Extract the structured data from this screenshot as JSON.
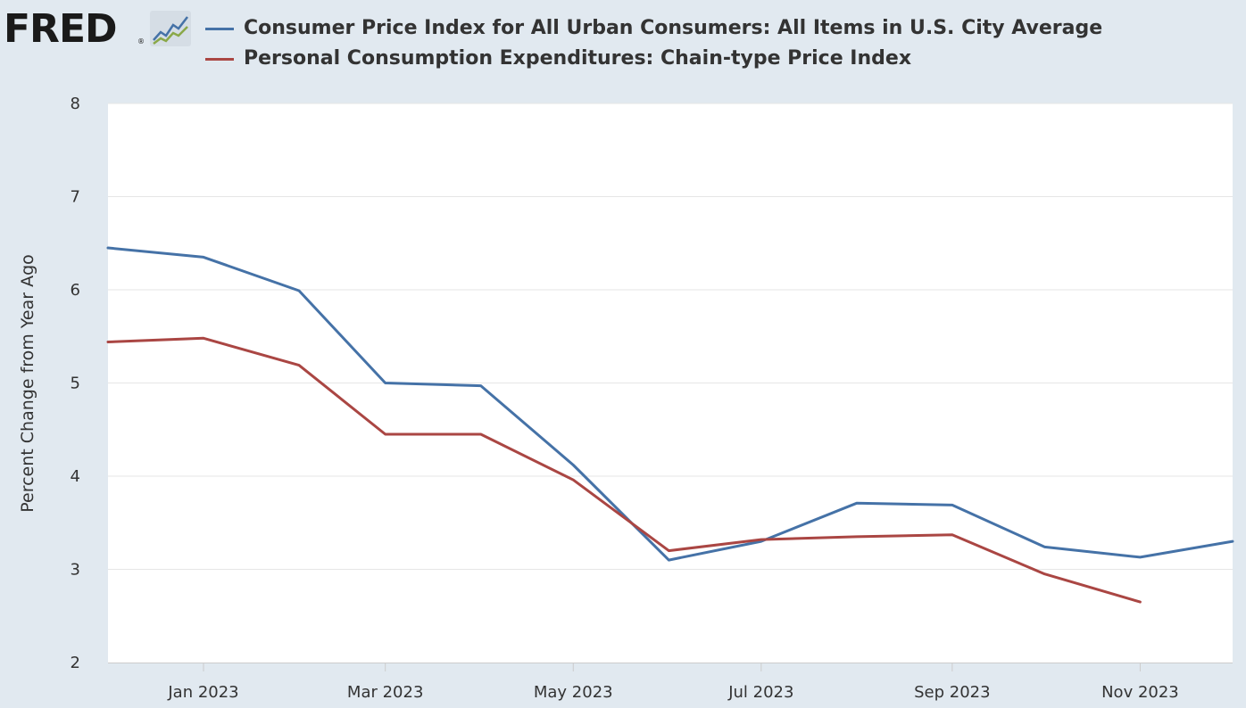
{
  "header": {
    "logo_text": "FRED",
    "logo_reg": "®",
    "logo_icon": "line-chart-icon"
  },
  "colors": {
    "background": "#e1e9f0",
    "plot_area": "#ffffff",
    "cpi": "#4572a7",
    "pce": "#aa4643",
    "grid": "#e6e6e6"
  },
  "chart_data": {
    "type": "line",
    "title": "",
    "xlabel": "",
    "ylabel": "Percent Change from Year Ago",
    "ylim": [
      2,
      8
    ],
    "yticks": [
      2,
      3,
      4,
      5,
      6,
      7,
      8
    ],
    "xlim": [
      "2022-12-01",
      "2023-12-01"
    ],
    "xticks": [
      {
        "label": "Jan 2023",
        "date": "2023-01-01"
      },
      {
        "label": "Mar 2023",
        "date": "2023-03-01"
      },
      {
        "label": "May 2023",
        "date": "2023-05-01"
      },
      {
        "label": "Jul 2023",
        "date": "2023-07-01"
      },
      {
        "label": "Sep 2023",
        "date": "2023-09-01"
      },
      {
        "label": "Nov 2023",
        "date": "2023-11-01"
      }
    ],
    "grid": true,
    "legend": "top-left",
    "series": [
      {
        "name": "Consumer Price Index for All Urban Consumers: All Items in U.S. City Average",
        "color": "#4572a7",
        "x": [
          "2022-12-01",
          "2023-01-01",
          "2023-02-01",
          "2023-03-01",
          "2023-04-01",
          "2023-05-01",
          "2023-06-01",
          "2023-07-01",
          "2023-08-01",
          "2023-09-01",
          "2023-10-01",
          "2023-11-01",
          "2023-12-01"
        ],
        "values": [
          6.45,
          6.35,
          5.99,
          5.0,
          4.97,
          4.12,
          3.1,
          3.3,
          3.71,
          3.69,
          3.24,
          3.13,
          3.3
        ]
      },
      {
        "name": "Personal Consumption Expenditures: Chain-type Price Index",
        "color": "#aa4643",
        "x": [
          "2022-12-01",
          "2023-01-01",
          "2023-02-01",
          "2023-03-01",
          "2023-04-01",
          "2023-05-01",
          "2023-06-01",
          "2023-07-01",
          "2023-08-01",
          "2023-09-01",
          "2023-10-01",
          "2023-11-01"
        ],
        "values": [
          5.44,
          5.48,
          5.19,
          4.45,
          4.45,
          3.96,
          3.2,
          3.32,
          3.35,
          3.37,
          2.95,
          2.65
        ]
      }
    ]
  }
}
